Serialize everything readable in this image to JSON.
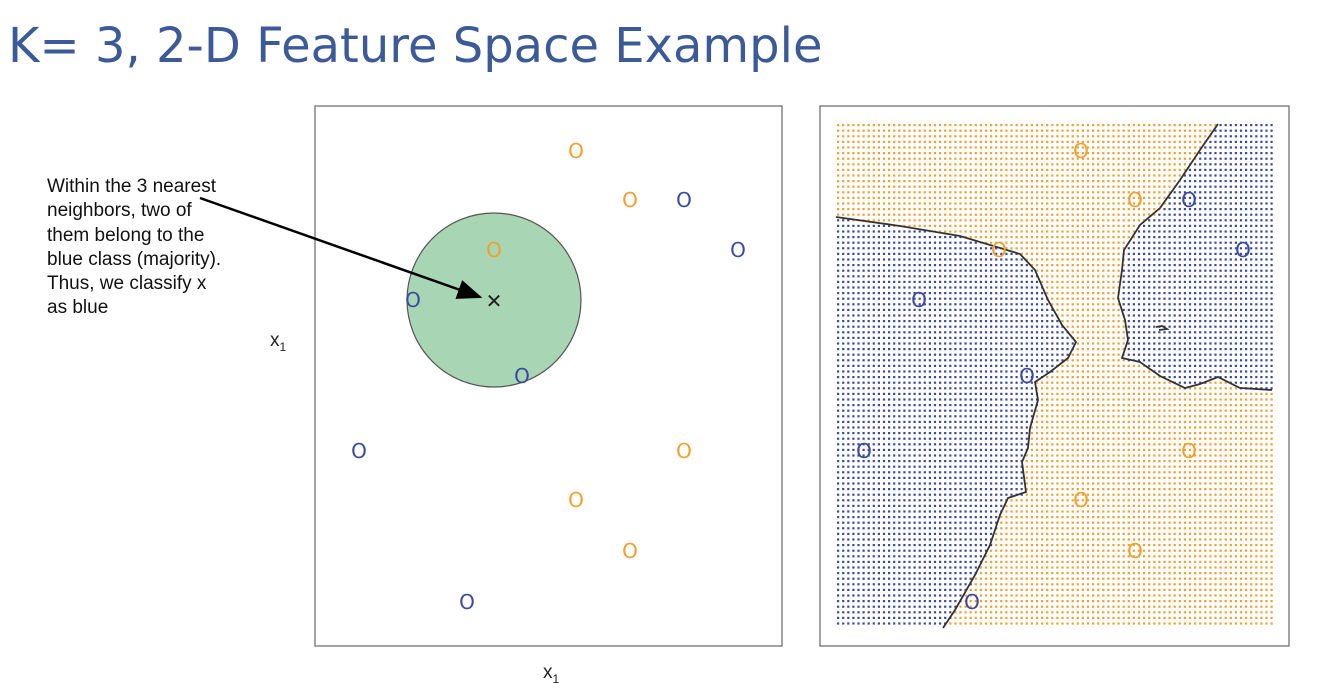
{
  "title": "K= 3, 2-D Feature Space Example",
  "annotation": "Within the 3 nearest neighbors, two of them belong to the blue class (majority). Thus, we classify x as blue",
  "left_panel": {
    "x_axis_label": "x",
    "x_axis_sub": "1",
    "y_axis_label": "x",
    "y_axis_sub": "1",
    "query_point_symbol": "✕",
    "point_symbol": "O",
    "neighborhood_color": "#a8d5b3",
    "orange_points": [
      [
        576,
        151
      ],
      [
        630,
        200
      ],
      [
        494,
        250
      ],
      [
        684,
        451
      ],
      [
        576,
        500
      ],
      [
        630,
        551
      ]
    ],
    "blue_points": [
      [
        684,
        200
      ],
      [
        738,
        250
      ],
      [
        413,
        300
      ],
      [
        522,
        376
      ],
      [
        359,
        451
      ],
      [
        467,
        602
      ]
    ],
    "query_point": [
      494,
      300
    ],
    "neighborhood_radius": 87
  },
  "right_panel": {
    "point_symbol": "O",
    "orange_points": [
      [
        1081,
        151
      ],
      [
        1135,
        200
      ],
      [
        999,
        250
      ],
      [
        1189,
        451
      ],
      [
        1081,
        500
      ],
      [
        1135,
        551
      ]
    ],
    "blue_points": [
      [
        1189,
        200
      ],
      [
        1243,
        250
      ],
      [
        919,
        300
      ],
      [
        1027,
        376
      ],
      [
        864,
        451
      ],
      [
        972,
        602
      ]
    ]
  },
  "colors": {
    "orange": "#f0a030",
    "blue": "#3b4aa0",
    "title": "#3c5a97"
  }
}
